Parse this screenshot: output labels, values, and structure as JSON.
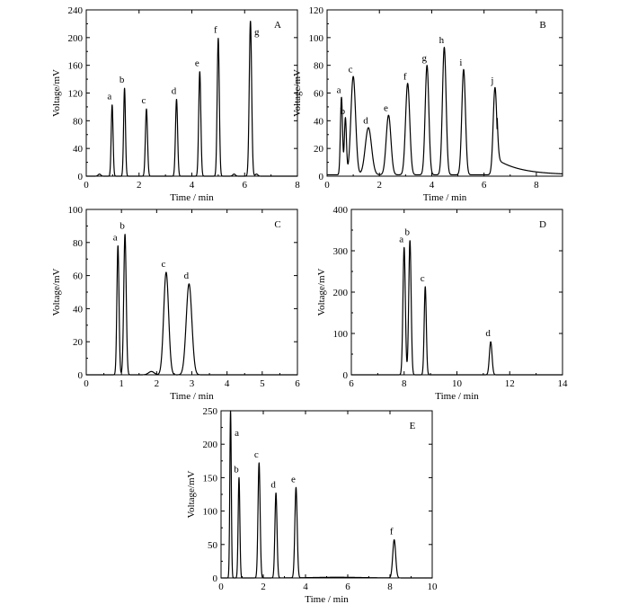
{
  "chart_data": [
    {
      "type": "line",
      "panel": "A",
      "xlabel": "Time / min",
      "ylabel": "Voltage/mV",
      "xlim": [
        0,
        8
      ],
      "ylim": [
        0,
        240
      ],
      "xticks": [
        0,
        2,
        4,
        6,
        8
      ],
      "yticks": [
        0,
        40,
        80,
        120,
        160,
        200,
        240
      ],
      "baseline": 0,
      "peaks": [
        {
          "label": "a",
          "t": 0.98,
          "h": 103,
          "w": 0.035
        },
        {
          "label": "b",
          "t": 1.45,
          "h": 127,
          "w": 0.035
        },
        {
          "label": "c",
          "t": 2.28,
          "h": 97,
          "w": 0.04
        },
        {
          "label": "d",
          "t": 3.42,
          "h": 111,
          "w": 0.04
        },
        {
          "label": "e",
          "t": 4.3,
          "h": 151,
          "w": 0.04
        },
        {
          "label": "f",
          "t": 5.0,
          "h": 199,
          "w": 0.04
        },
        {
          "label": "g",
          "t": 6.22,
          "h": 224,
          "w": 0.045
        }
      ],
      "extra_bumps": [
        {
          "t": 0.5,
          "h": 3,
          "w": 0.05
        },
        {
          "t": 5.6,
          "h": 3,
          "w": 0.05
        },
        {
          "t": 6.45,
          "h": 3,
          "w": 0.05
        }
      ]
    },
    {
      "type": "line",
      "panel": "B",
      "xlabel": "Time / min",
      "ylabel": "Voltage/mV",
      "xlim": [
        0,
        9
      ],
      "ylim": [
        0,
        120
      ],
      "xticks": [
        0,
        2,
        4,
        6,
        8
      ],
      "yticks": [
        0,
        20,
        40,
        60,
        80,
        100,
        120
      ],
      "baseline": 1,
      "peaks": [
        {
          "label": "a",
          "t": 0.55,
          "h": 56,
          "w": 0.04
        },
        {
          "label": "b",
          "t": 0.7,
          "h": 41,
          "w": 0.04
        },
        {
          "label": "c",
          "t": 1.0,
          "h": 71,
          "w": 0.09
        },
        {
          "label": "d",
          "t": 1.58,
          "h": 34,
          "w": 0.12
        },
        {
          "label": "e",
          "t": 2.35,
          "h": 43,
          "w": 0.09
        },
        {
          "label": "f",
          "t": 3.08,
          "h": 66,
          "w": 0.08
        },
        {
          "label": "g",
          "t": 3.82,
          "h": 79,
          "w": 0.07
        },
        {
          "label": "h",
          "t": 4.48,
          "h": 92,
          "w": 0.07
        },
        {
          "label": "i",
          "t": 5.22,
          "h": 76,
          "w": 0.07
        },
        {
          "label": "j",
          "t": 6.42,
          "h": 63,
          "w": 0.07
        }
      ],
      "tail": {
        "t0": 6.5,
        "h": 11,
        "tau": 0.9
      }
    },
    {
      "type": "line",
      "panel": "C",
      "xlabel": "Time / min",
      "ylabel": "Voltage/mV",
      "xlim": [
        0,
        6
      ],
      "ylim": [
        0,
        100
      ],
      "xticks": [
        0,
        1,
        2,
        3,
        4,
        5,
        6
      ],
      "yticks": [
        0,
        20,
        40,
        60,
        80,
        100
      ],
      "baseline": 0,
      "peaks": [
        {
          "label": "a",
          "t": 0.9,
          "h": 78,
          "w": 0.03
        },
        {
          "label": "b",
          "t": 1.1,
          "h": 85,
          "w": 0.035
        },
        {
          "label": "c",
          "t": 2.27,
          "h": 62,
          "w": 0.07
        },
        {
          "label": "d",
          "t": 2.92,
          "h": 55,
          "w": 0.08
        }
      ],
      "extra_bumps": [
        {
          "t": 1.85,
          "h": 2,
          "w": 0.08
        }
      ]
    },
    {
      "type": "line",
      "panel": "D",
      "xlabel": "Time / min",
      "ylabel": "Voltage/mV",
      "xlim": [
        6,
        14
      ],
      "ylim": [
        0,
        400
      ],
      "xticks": [
        6,
        8,
        10,
        12,
        14
      ],
      "yticks": [
        0,
        100,
        200,
        300,
        400
      ],
      "baseline": 0,
      "peaks": [
        {
          "label": "a",
          "t": 8.0,
          "h": 308,
          "w": 0.045
        },
        {
          "label": "b",
          "t": 8.22,
          "h": 325,
          "w": 0.045
        },
        {
          "label": "c",
          "t": 8.8,
          "h": 213,
          "w": 0.04
        },
        {
          "label": "d",
          "t": 11.28,
          "h": 80,
          "w": 0.05
        }
      ]
    },
    {
      "type": "line",
      "panel": "E",
      "xlabel": "Time / min",
      "ylabel": "Voltage/mV",
      "xlim": [
        0,
        10
      ],
      "ylim": [
        0,
        250
      ],
      "xticks": [
        0,
        2,
        4,
        6,
        8,
        10
      ],
      "yticks": [
        0,
        50,
        100,
        150,
        200,
        250
      ],
      "baseline": 0,
      "peaks": [
        {
          "label": "a",
          "t": 0.45,
          "h": 250,
          "w": 0.035
        },
        {
          "label": "b",
          "t": 0.85,
          "h": 150,
          "w": 0.04
        },
        {
          "label": "c",
          "t": 1.8,
          "h": 172,
          "w": 0.05
        },
        {
          "label": "d",
          "t": 2.6,
          "h": 127,
          "w": 0.05
        },
        {
          "label": "e",
          "t": 3.55,
          "h": 135,
          "w": 0.055
        },
        {
          "label": "f",
          "t": 8.2,
          "h": 57,
          "w": 0.07
        }
      ],
      "extra_bumps": [
        {
          "t": 5.5,
          "h": 1,
          "w": 1.2
        }
      ]
    }
  ]
}
